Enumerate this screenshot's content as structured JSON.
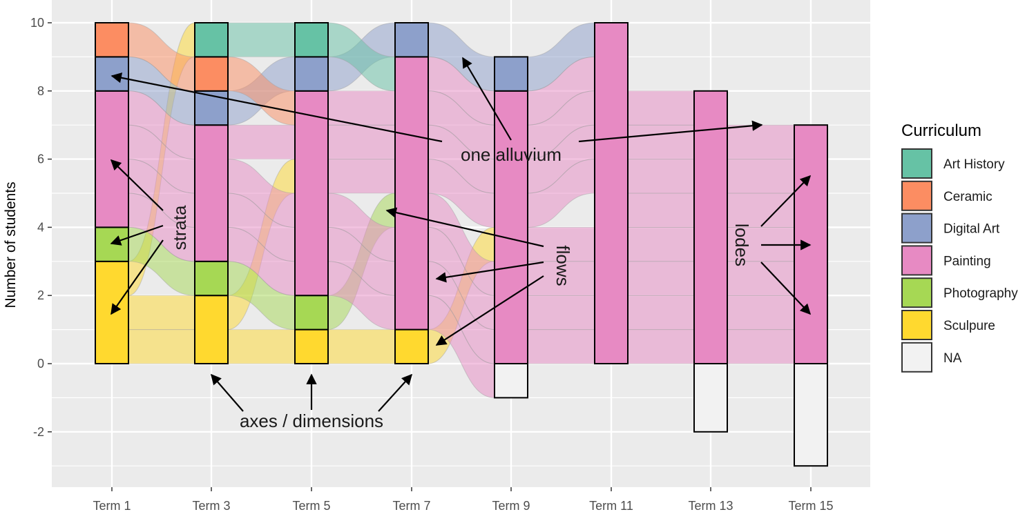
{
  "chart_data": {
    "type": "alluvial",
    "ylabel": "Number of students",
    "categories": [
      "Term 1",
      "Term 3",
      "Term 5",
      "Term 7",
      "Term 9",
      "Term 11",
      "Term 13",
      "Term 15"
    ],
    "yticks": [
      -2,
      0,
      2,
      4,
      6,
      8,
      10
    ],
    "ylim": [
      -3.3,
      10.3
    ],
    "grid": true,
    "legend": {
      "title": "Curriculum",
      "placement": "right",
      "entries": [
        {
          "label": "Art History",
          "color": "#66C2A5"
        },
        {
          "label": "Ceramic",
          "color": "#FC8D62"
        },
        {
          "label": "Digital Art",
          "color": "#8DA0CB"
        },
        {
          "label": "Painting",
          "color": "#E78AC3"
        },
        {
          "label": "Photography",
          "color": "#A6D854"
        },
        {
          "label": "Sculpure",
          "color": "#FFD92F"
        },
        {
          "label": "NA",
          "color": "#F2F2F2"
        }
      ]
    },
    "strata": [
      {
        "term": "Term 1",
        "counts": {
          "Sculpure": 3,
          "Photography": 1,
          "Painting": 4,
          "Digital Art": 1,
          "Ceramic": 1
        },
        "na": 0
      },
      {
        "term": "Term 3",
        "counts": {
          "Sculpure": 2,
          "Photography": 1,
          "Painting": 4,
          "Digital Art": 1,
          "Ceramic": 1,
          "Art History": 1
        },
        "na": 0
      },
      {
        "term": "Term 5",
        "counts": {
          "Sculpure": 1,
          "Photography": 1,
          "Painting": 6,
          "Digital Art": 1,
          "Art History": 1
        },
        "na": 0
      },
      {
        "term": "Term 7",
        "counts": {
          "Sculpure": 1,
          "Painting": 8,
          "Digital Art": 1
        },
        "na": 0
      },
      {
        "term": "Term 9",
        "counts": {
          "Painting": 8,
          "Digital Art": 1
        },
        "na": 1
      },
      {
        "term": "Term 11",
        "counts": {
          "Painting": 10
        },
        "na": 0
      },
      {
        "term": "Term 13",
        "counts": {
          "Painting": 8
        },
        "na": 2
      },
      {
        "term": "Term 15",
        "counts": {
          "Painting": 7
        },
        "na": 3
      }
    ],
    "annotations": [
      {
        "text": "one alluvium"
      },
      {
        "text": "strata"
      },
      {
        "text": "flows"
      },
      {
        "text": "lodes"
      },
      {
        "text": "axes / dimensions"
      }
    ]
  }
}
